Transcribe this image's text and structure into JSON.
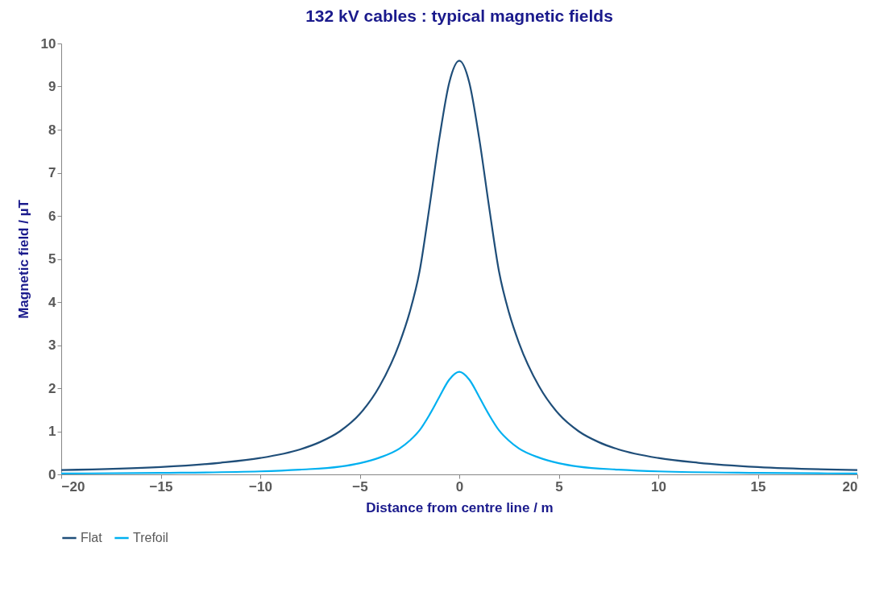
{
  "chart_data": {
    "type": "line",
    "title": "132 kV cables : typical magnetic fields",
    "xlabel": "Distance from centre line / m",
    "ylabel": "Magnetic field / µT",
    "xlim": [
      -20,
      20
    ],
    "xticks": [
      -20,
      -15,
      -10,
      -5,
      0,
      5,
      10,
      15,
      20
    ],
    "ylim": [
      0,
      10
    ],
    "yticks": [
      0,
      1,
      2,
      3,
      4,
      5,
      6,
      7,
      8,
      9,
      10
    ],
    "grid": false,
    "legend": "bottom",
    "series": [
      {
        "name": "Flat",
        "color": "#1f4e79",
        "x": [
          -20,
          -15,
          -12,
          -10,
          -8,
          -7,
          -6,
          -5,
          -4,
          -3,
          -2.5,
          -2,
          -1.5,
          -1,
          -0.5,
          0,
          0.5,
          1,
          1.5,
          2,
          2.5,
          3,
          4,
          5,
          6,
          7,
          8,
          10,
          12,
          15,
          20
        ],
        "values": [
          0.1,
          0.17,
          0.27,
          0.38,
          0.58,
          0.75,
          1.0,
          1.4,
          2.05,
          3.05,
          3.75,
          4.7,
          6.2,
          7.8,
          9.1,
          9.6,
          9.1,
          7.8,
          6.2,
          4.7,
          3.75,
          3.05,
          2.05,
          1.4,
          1.0,
          0.75,
          0.58,
          0.38,
          0.27,
          0.17,
          0.1
        ]
      },
      {
        "name": "Trefoil",
        "color": "#00b0f0",
        "x": [
          -20,
          -15,
          -10,
          -8,
          -6,
          -5,
          -4,
          -3,
          -2.5,
          -2,
          -1.5,
          -1,
          -0.5,
          0,
          0.5,
          1,
          1.5,
          2,
          2.5,
          3,
          4,
          5,
          6,
          8,
          10,
          15,
          20
        ],
        "values": [
          0.02,
          0.035,
          0.07,
          0.11,
          0.18,
          0.26,
          0.39,
          0.6,
          0.78,
          1.02,
          1.38,
          1.8,
          2.2,
          2.38,
          2.2,
          1.8,
          1.38,
          1.02,
          0.78,
          0.6,
          0.39,
          0.26,
          0.18,
          0.11,
          0.07,
          0.035,
          0.02
        ]
      }
    ]
  }
}
